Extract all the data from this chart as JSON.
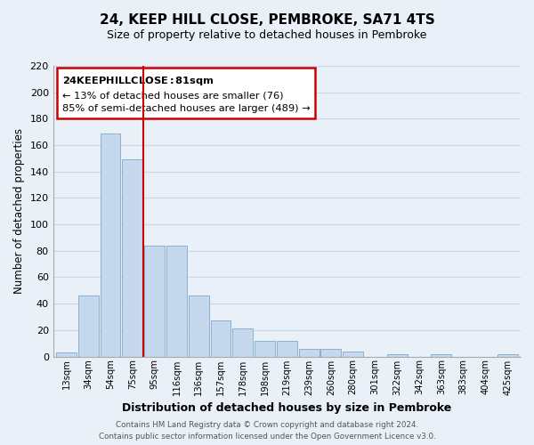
{
  "title": "24, KEEP HILL CLOSE, PEMBROKE, SA71 4TS",
  "subtitle": "Size of property relative to detached houses in Pembroke",
  "xlabel": "Distribution of detached houses by size in Pembroke",
  "ylabel": "Number of detached properties",
  "bin_labels": [
    "13sqm",
    "34sqm",
    "54sqm",
    "75sqm",
    "95sqm",
    "116sqm",
    "136sqm",
    "157sqm",
    "178sqm",
    "198sqm",
    "219sqm",
    "239sqm",
    "260sqm",
    "280sqm",
    "301sqm",
    "322sqm",
    "342sqm",
    "363sqm",
    "383sqm",
    "404sqm",
    "425sqm"
  ],
  "values": [
    3,
    46,
    169,
    149,
    84,
    84,
    46,
    27,
    21,
    12,
    12,
    6,
    6,
    4,
    0,
    2,
    0,
    2,
    0,
    0,
    2
  ],
  "bar_color": "#c5d8ed",
  "bar_edge_color": "#8ab0d0",
  "vline_position": 3.5,
  "vline_color": "#cc0000",
  "ylim": [
    0,
    220
  ],
  "yticks": [
    0,
    20,
    40,
    60,
    80,
    100,
    120,
    140,
    160,
    180,
    200,
    220
  ],
  "annotation_title": "24 KEEP HILL CLOSE: 81sqm",
  "annotation_line1": "← 13% of detached houses are smaller (76)",
  "annotation_line2": "85% of semi-detached houses are larger (489) →",
  "annotation_box_color": "#ffffff",
  "annotation_box_edge": "#cc0000",
  "footer1": "Contains HM Land Registry data © Crown copyright and database right 2024.",
  "footer2": "Contains public sector information licensed under the Open Government Licence v3.0.",
  "grid_color": "#c8d8e8",
  "background_color": "#eaf0f8"
}
